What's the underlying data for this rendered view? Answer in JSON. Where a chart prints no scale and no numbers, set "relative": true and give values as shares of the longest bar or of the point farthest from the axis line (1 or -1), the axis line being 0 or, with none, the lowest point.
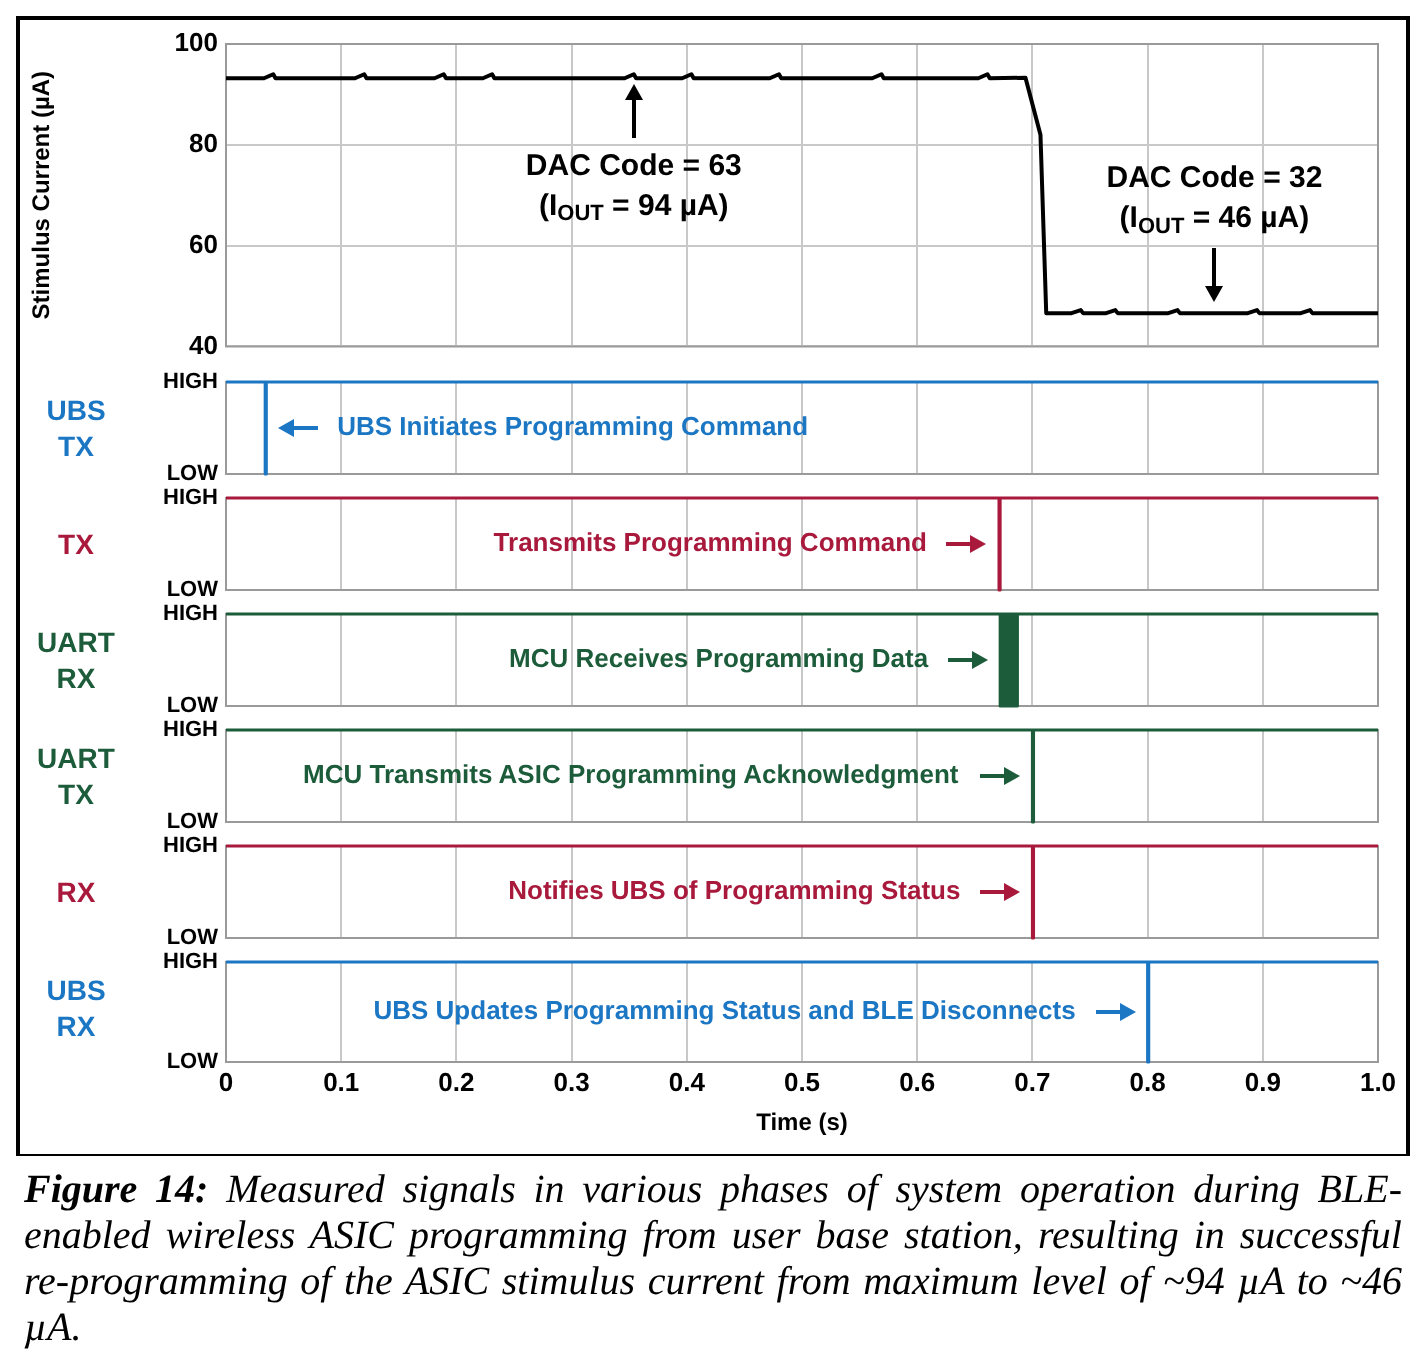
{
  "chart_data": [
    {
      "type": "line",
      "ylabel": "Stimulus Current (µA)",
      "xlim": [
        0,
        1
      ],
      "xticks": [
        0,
        0.1,
        0.2,
        0.3,
        0.4,
        0.5,
        0.6,
        0.7,
        0.8,
        0.9
      ],
      "ylim": [
        40,
        100
      ],
      "yticks": [
        40,
        60,
        80,
        100
      ],
      "tick_labels": "y",
      "grid": true,
      "color": "#000000",
      "x": [
        0,
        0.033,
        0.041,
        0.043,
        0.112,
        0.12,
        0.122,
        0.181,
        0.189,
        0.191,
        0.223,
        0.231,
        0.233,
        0.346,
        0.354,
        0.356,
        0.396,
        0.404,
        0.406,
        0.472,
        0.48,
        0.482,
        0.561,
        0.569,
        0.571,
        0.653,
        0.661,
        0.663,
        0.694,
        0.707,
        0.712,
        0.734,
        0.742,
        0.744,
        0.764,
        0.772,
        0.774,
        0.818,
        0.826,
        0.828,
        0.887,
        0.895,
        0.897,
        0.933,
        0.941,
        0.943,
        1
      ],
      "values": [
        93.2,
        93.2,
        94,
        93.2,
        93.2,
        94,
        93.2,
        93.2,
        94,
        93.2,
        93.2,
        94,
        93.2,
        93.2,
        94,
        93.2,
        93.2,
        94,
        93.2,
        93.2,
        94,
        93.2,
        93.2,
        94,
        93.2,
        93.2,
        94,
        93.2,
        93.3,
        82,
        46.6,
        46.6,
        47.2,
        46.6,
        46.6,
        47.2,
        46.6,
        46.6,
        47.2,
        46.6,
        46.6,
        47.2,
        46.6,
        46.6,
        47.2,
        46.6,
        46.6
      ],
      "annotations": [
        {
          "text": "DAC Code = 63\n(I$_{OUT}$ = 94 µA)",
          "x": 0.354,
          "y": 94
        },
        {
          "text": "DAC Code = 32\n(I$_{OUT}$ = 46 µA)",
          "x": 0.858,
          "y": 47
        }
      ]
    },
    {
      "type": "step",
      "relative": true,
      "ylabel": "UBS TX",
      "xlim": [
        0,
        1
      ],
      "xticks": [
        0,
        0.1,
        0.2,
        0.3,
        0.4,
        0.5,
        0.6,
        0.7,
        0.8,
        0.9
      ],
      "tick_labels": false,
      "grid": "x",
      "color": "#1b76c3",
      "x": [
        0,
        0.034,
        0.035,
        1
      ],
      "values": [
        1,
        0,
        1,
        1
      ],
      "annotations": [
        "HIGH",
        "LOW",
        {
          "text": "UBS Initiates Programming Command",
          "x": 0.034,
          "y": 0.5
        }
      ]
    },
    {
      "type": "step",
      "relative": true,
      "ylabel": "TX",
      "xlim": [
        0,
        1
      ],
      "xticks": [
        0,
        0.1,
        0.2,
        0.3,
        0.4,
        0.5,
        0.6,
        0.7,
        0.8,
        0.9
      ],
      "tick_labels": false,
      "grid": "x",
      "color": "#a8193c",
      "x": [
        0,
        0.671,
        0.672,
        1
      ],
      "values": [
        1,
        0,
        1,
        1
      ],
      "annotations": [
        "HIGH",
        "LOW",
        {
          "text": "Transmits Programming Command",
          "x": 0.671,
          "y": 0.5
        }
      ]
    },
    {
      "type": "step",
      "relative": true,
      "ylabel": "UART RX",
      "xlim": [
        0,
        1
      ],
      "xticks": [
        0,
        0.1,
        0.2,
        0.3,
        0.4,
        0.5,
        0.6,
        0.7,
        0.8,
        0.9
      ],
      "tick_labels": false,
      "grid": "x",
      "color": "#1d5c3a",
      "x": [
        0,
        0.672,
        0.673,
        0.674,
        0.675,
        0.676,
        0.677,
        0.678,
        0.679,
        0.68,
        0.681,
        0.682,
        0.683,
        0.684,
        0.685,
        0.686,
        0.687,
        1
      ],
      "values": [
        1,
        0,
        1,
        0,
        1,
        0,
        1,
        0,
        1,
        0,
        1,
        0,
        1,
        0,
        1,
        0,
        1,
        1
      ],
      "annotations": [
        "HIGH",
        "LOW",
        {
          "text": "MCU Receives Programming Data",
          "x": 0.672,
          "y": 0.5
        }
      ]
    },
    {
      "type": "step",
      "relative": true,
      "ylabel": "UART TX",
      "xlim": [
        0,
        1
      ],
      "xticks": [
        0,
        0.1,
        0.2,
        0.3,
        0.4,
        0.5,
        0.6,
        0.7,
        0.8,
        0.9
      ],
      "tick_labels": false,
      "grid": "x",
      "color": "#1d5c3a",
      "x": [
        0,
        0.7,
        0.701,
        1
      ],
      "values": [
        1,
        0,
        1,
        1
      ],
      "annotations": [
        "HIGH",
        "LOW",
        {
          "text": "MCU Transmits ASIC Programming Acknowledgment",
          "x": 0.7,
          "y": 0.5
        }
      ]
    },
    {
      "type": "step",
      "relative": true,
      "ylabel": "RX",
      "xlim": [
        0,
        1
      ],
      "xticks": [
        0,
        0.1,
        0.2,
        0.3,
        0.4,
        0.5,
        0.6,
        0.7,
        0.8,
        0.9
      ],
      "tick_labels": false,
      "grid": "x",
      "color": "#a8193c",
      "x": [
        0,
        0.7,
        0.701,
        1
      ],
      "values": [
        1,
        0,
        1,
        1
      ],
      "annotations": [
        "HIGH",
        "LOW",
        {
          "text": "Notifies UBS of Programming Status",
          "x": 0.7,
          "y": 0.5
        }
      ]
    },
    {
      "type": "step",
      "relative": true,
      "ylabel": "UBS RX",
      "xlabel": "Time (s)",
      "xlim": [
        0,
        1
      ],
      "xticks": [
        0,
        0.1,
        0.2,
        0.3,
        0.4,
        0.5,
        0.6,
        0.7,
        0.8,
        0.9,
        {
          "value": 1,
          "label": "1.0"
        }
      ],
      "tick_labels": "x",
      "grid": "x",
      "color": "#1b76c3",
      "x": [
        0,
        0.8,
        0.801,
        1
      ],
      "values": [
        1,
        0,
        1,
        1
      ],
      "annotations": [
        "HIGH",
        "LOW",
        {
          "text": "UBS Updates Programming Status and BLE Disconnects",
          "x": 0.8,
          "y": 0.5
        },
        "Figure 14: Measured signals in various phases of system operation during BLE-enabled wireless ASIC programming from user base station, resulting in successful re-programming of the ASIC stimulus current from maximum level of ~94 µA to ~46 µA."
      ]
    }
  ]
}
